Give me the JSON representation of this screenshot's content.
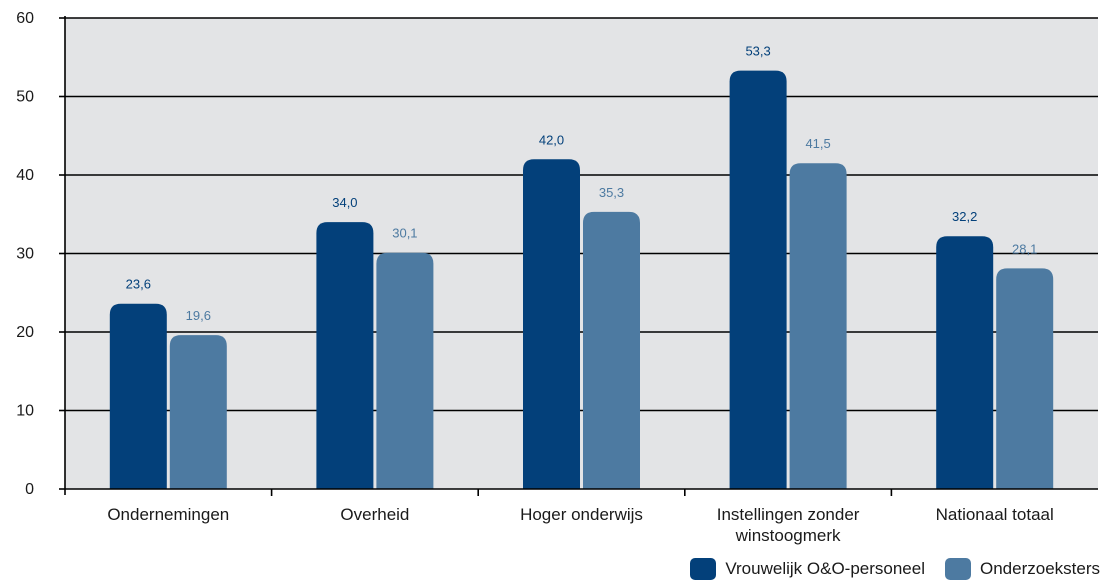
{
  "chart_data": {
    "type": "bar",
    "categories": [
      [
        "Ondernemingen"
      ],
      [
        "Overheid"
      ],
      [
        "Hoger onderwijs"
      ],
      [
        "Instellingen zonder",
        "winstoogmerk"
      ],
      [
        "Nationaal totaal"
      ]
    ],
    "series": [
      {
        "name": "Vrouwelijk O&O-personeel",
        "color": "#03407a",
        "values": [
          23.6,
          34.0,
          42.0,
          53.3,
          32.2
        ],
        "labels": [
          "23,6",
          "34,0",
          "42,0",
          "53,3",
          "32,2"
        ]
      },
      {
        "name": "Onderzoeksters",
        "color": "#4d7aa1",
        "values": [
          19.6,
          30.1,
          35.3,
          41.5,
          28.1
        ],
        "labels": [
          "19,6",
          "30,1",
          "35,3",
          "41,5",
          "28,1"
        ]
      }
    ],
    "ylim": [
      0,
      60
    ],
    "yticks": [
      0,
      10,
      20,
      30,
      40,
      50,
      60
    ],
    "grid": true,
    "plot_background": "#e3e4e6",
    "legend_position": "bottom-right"
  }
}
